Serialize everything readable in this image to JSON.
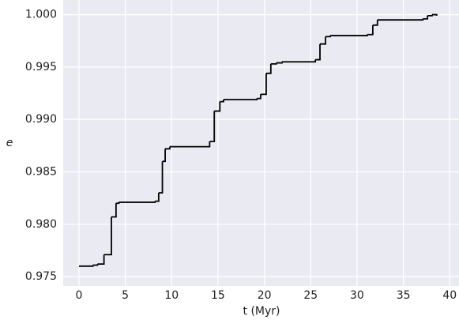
{
  "chart_data": {
    "type": "step",
    "x_label": "t (Myr)",
    "y_label": "e",
    "x": [
      0,
      1.5,
      2.0,
      2.7,
      3.5,
      4.0,
      4.3,
      8.2,
      8.6,
      9.0,
      9.3,
      9.8,
      14.1,
      14.6,
      15.2,
      15.6,
      19.2,
      19.6,
      20.2,
      20.7,
      21.3,
      21.9,
      25.5,
      26.0,
      26.6,
      27.1,
      31.1,
      31.7,
      32.2,
      37.1,
      37.6,
      38.1,
      38.6
    ],
    "values": [
      0.976,
      0.9761,
      0.9762,
      0.9771,
      0.9807,
      0.982,
      0.9821,
      0.9822,
      0.983,
      0.986,
      0.9872,
      0.9874,
      0.9879,
      0.9908,
      0.9917,
      0.9919,
      0.992,
      0.9924,
      0.9944,
      0.9953,
      0.9954,
      0.9955,
      0.9957,
      0.9972,
      0.9979,
      0.998,
      0.9981,
      0.999,
      0.9995,
      0.9996,
      0.9999,
      1.0,
      0.9999
    ],
    "color": "#000000",
    "xlim": [
      -1.7,
      41
    ],
    "ylim": [
      0.9741,
      1.0014
    ],
    "xticks": [
      0,
      5,
      10,
      15,
      20,
      25,
      30,
      35,
      40
    ],
    "yticks": [
      0.975,
      {
        "value": 0.98,
        "label": "0.980"
      },
      0.985,
      {
        "value": 0.99,
        "label": "0.990"
      },
      0.995,
      {
        "value": 1.0,
        "label": "1.000"
      }
    ],
    "grid": true
  }
}
